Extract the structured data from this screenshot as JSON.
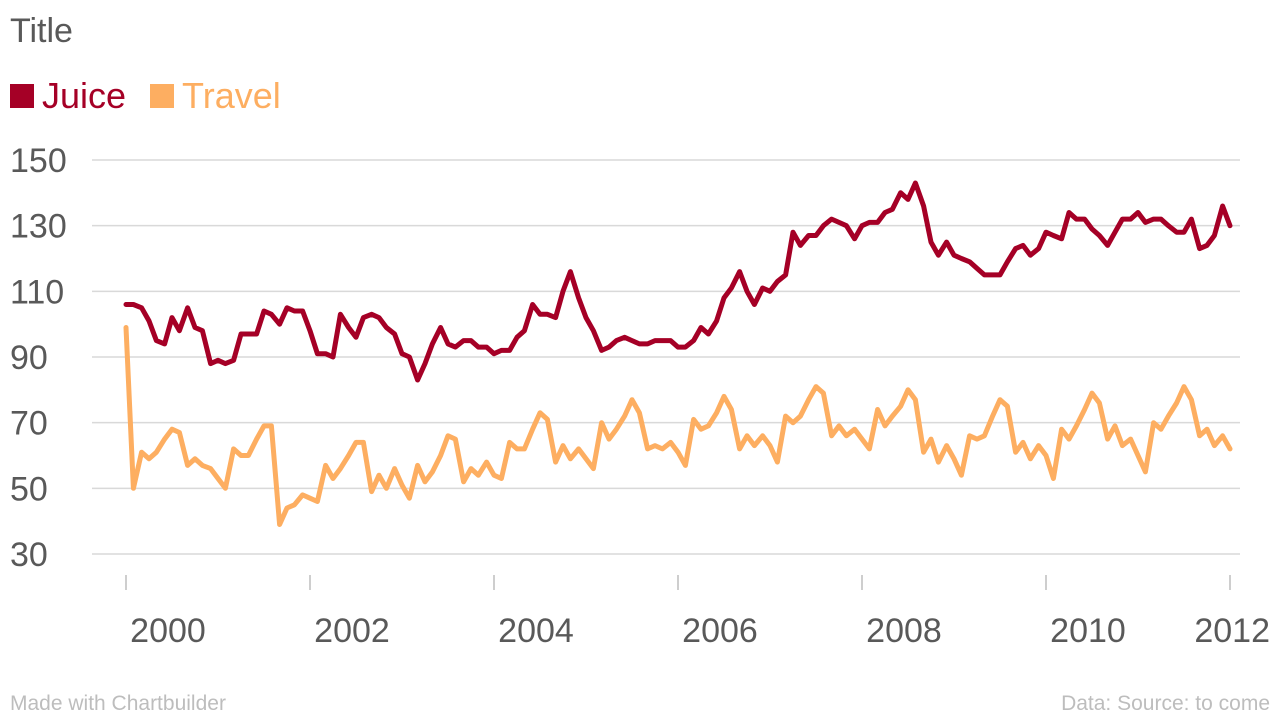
{
  "chart_data": {
    "type": "line",
    "title": "Title",
    "xlabel": "",
    "ylabel": "",
    "ylim": [
      30,
      150
    ],
    "yticks": [
      30,
      50,
      70,
      90,
      110,
      130,
      150
    ],
    "xticks": [
      2000,
      2002,
      2004,
      2006,
      2008,
      2010,
      2012
    ],
    "xlim": [
      1999.75,
      2011.75
    ],
    "grid": true,
    "legend": "top-left",
    "series": [
      {
        "name": "Juice",
        "color": "#a50026",
        "x": [
          1999.75,
          1999.83,
          1999.92,
          2000.0,
          2000.08,
          2000.17,
          2000.25,
          2000.33,
          2000.42,
          2000.5,
          2000.58,
          2000.67,
          2000.75,
          2000.83,
          2000.92,
          2001.0,
          2001.08,
          2001.17,
          2001.25,
          2001.33,
          2001.42,
          2001.5,
          2001.58,
          2001.67,
          2001.75,
          2001.83,
          2001.92,
          2002.0,
          2002.08,
          2002.17,
          2002.25,
          2002.33,
          2002.42,
          2002.5,
          2002.58,
          2002.67,
          2002.75,
          2002.83,
          2002.92,
          2003.0,
          2003.08,
          2003.17,
          2003.25,
          2003.33,
          2003.42,
          2003.5,
          2003.58,
          2003.67,
          2003.75,
          2003.83,
          2003.92,
          2004.0,
          2004.08,
          2004.17,
          2004.25,
          2004.33,
          2004.42,
          2004.5,
          2004.58,
          2004.67,
          2004.75,
          2004.83,
          2004.92,
          2005.0,
          2005.08,
          2005.17,
          2005.25,
          2005.33,
          2005.42,
          2005.5,
          2005.58,
          2005.67,
          2005.75,
          2005.83,
          2005.92,
          2006.0,
          2006.08,
          2006.17,
          2006.25,
          2006.33,
          2006.42,
          2006.5,
          2006.58,
          2006.67,
          2006.75,
          2006.83,
          2006.92,
          2007.0,
          2007.08,
          2007.17,
          2007.25,
          2007.33,
          2007.42,
          2007.5,
          2007.58,
          2007.67,
          2007.75,
          2007.83,
          2007.92,
          2008.0,
          2008.08,
          2008.17,
          2008.25,
          2008.33,
          2008.42,
          2008.5,
          2008.58,
          2008.67,
          2008.75,
          2008.83,
          2008.92,
          2009.0,
          2009.08,
          2009.17,
          2009.25,
          2009.33,
          2009.42,
          2009.5,
          2009.58,
          2009.67,
          2009.75,
          2009.83,
          2009.92,
          2010.0,
          2010.08,
          2010.17,
          2010.25,
          2010.33,
          2010.42,
          2010.5,
          2010.58,
          2010.67,
          2010.75,
          2010.83,
          2010.92,
          2011.0,
          2011.08,
          2011.17,
          2011.25,
          2011.33,
          2011.42,
          2011.5,
          2011.58,
          2011.67,
          2011.75
        ],
        "values": [
          106,
          106,
          105,
          101,
          95,
          94,
          102,
          98,
          105,
          99,
          98,
          88,
          89,
          88,
          89,
          97,
          97,
          97,
          104,
          103,
          100,
          105,
          104,
          104,
          98,
          91,
          91,
          90,
          103,
          99,
          96,
          102,
          103,
          102,
          99,
          97,
          91,
          90,
          83,
          88,
          94,
          99,
          94,
          93,
          95,
          95,
          93,
          93,
          91,
          92,
          92,
          96,
          98,
          106,
          103,
          103,
          102,
          110,
          116,
          108,
          102,
          98,
          92,
          93,
          95,
          96,
          95,
          94,
          94,
          95,
          95,
          95,
          93,
          93,
          95,
          99,
          97,
          101,
          108,
          111,
          116,
          110,
          106,
          111,
          110,
          113,
          115,
          128,
          124,
          127,
          127,
          130,
          132,
          131,
          130,
          126,
          130,
          131,
          131,
          134,
          135,
          140,
          138,
          143,
          136,
          125,
          121,
          125,
          121,
          120,
          119,
          117,
          115,
          115,
          115,
          119,
          123,
          124,
          121,
          123,
          128,
          127,
          126,
          134,
          132,
          132,
          129,
          127,
          124,
          128,
          132,
          132,
          134,
          131,
          132,
          132,
          130,
          128,
          128,
          132,
          123,
          124,
          127,
          136,
          130
        ]
      },
      {
        "name": "Travel",
        "color": "#fdae61",
        "x": [
          1999.75,
          1999.83,
          1999.92,
          2000.0,
          2000.08,
          2000.17,
          2000.25,
          2000.33,
          2000.42,
          2000.5,
          2000.58,
          2000.67,
          2000.75,
          2000.83,
          2000.92,
          2001.0,
          2001.08,
          2001.17,
          2001.25,
          2001.33,
          2001.42,
          2001.5,
          2001.58,
          2001.67,
          2001.75,
          2001.83,
          2001.92,
          2002.0,
          2002.08,
          2002.17,
          2002.25,
          2002.33,
          2002.42,
          2002.5,
          2002.58,
          2002.67,
          2002.75,
          2002.83,
          2002.92,
          2003.0,
          2003.08,
          2003.17,
          2003.25,
          2003.33,
          2003.42,
          2003.5,
          2003.58,
          2003.67,
          2003.75,
          2003.83,
          2003.92,
          2004.0,
          2004.08,
          2004.17,
          2004.25,
          2004.33,
          2004.42,
          2004.5,
          2004.58,
          2004.67,
          2004.75,
          2004.83,
          2004.92,
          2005.0,
          2005.08,
          2005.17,
          2005.25,
          2005.33,
          2005.42,
          2005.5,
          2005.58,
          2005.67,
          2005.75,
          2005.83,
          2005.92,
          2006.0,
          2006.08,
          2006.17,
          2006.25,
          2006.33,
          2006.42,
          2006.5,
          2006.58,
          2006.67,
          2006.75,
          2006.83,
          2006.92,
          2007.0,
          2007.08,
          2007.17,
          2007.25,
          2007.33,
          2007.42,
          2007.5,
          2007.58,
          2007.67,
          2007.75,
          2007.83,
          2007.92,
          2008.0,
          2008.08,
          2008.17,
          2008.25,
          2008.33,
          2008.42,
          2008.5,
          2008.58,
          2008.67,
          2008.75,
          2008.83,
          2008.92,
          2009.0,
          2009.08,
          2009.17,
          2009.25,
          2009.33,
          2009.42,
          2009.5,
          2009.58,
          2009.67,
          2009.75,
          2009.83,
          2009.92,
          2010.0,
          2010.08,
          2010.17,
          2010.25,
          2010.33,
          2010.42,
          2010.5,
          2010.58,
          2010.67,
          2010.75,
          2010.83,
          2010.92,
          2011.0,
          2011.08,
          2011.17,
          2011.25,
          2011.33,
          2011.42,
          2011.5,
          2011.58,
          2011.67,
          2011.75
        ],
        "values": [
          99,
          50,
          61,
          59,
          61,
          65,
          68,
          67,
          57,
          59,
          57,
          56,
          53,
          50,
          62,
          60,
          60,
          65,
          69,
          69,
          39,
          44,
          45,
          48,
          47,
          46,
          57,
          53,
          56,
          60,
          64,
          64,
          49,
          54,
          50,
          56,
          51,
          47,
          57,
          52,
          55,
          60,
          66,
          65,
          52,
          56,
          54,
          58,
          54,
          53,
          64,
          62,
          62,
          68,
          73,
          71,
          58,
          63,
          59,
          62,
          59,
          56,
          70,
          65,
          68,
          72,
          77,
          73,
          62,
          63,
          62,
          64,
          61,
          57,
          71,
          68,
          69,
          73,
          78,
          74,
          62,
          66,
          63,
          66,
          63,
          58,
          72,
          70,
          72,
          77,
          81,
          79,
          66,
          69,
          66,
          68,
          65,
          62,
          74,
          69,
          72,
          75,
          80,
          77,
          61,
          65,
          58,
          63,
          59,
          54,
          66,
          65,
          66,
          72,
          77,
          75,
          61,
          64,
          59,
          63,
          60,
          53,
          68,
          65,
          69,
          74,
          79,
          76,
          65,
          69,
          63,
          65,
          60,
          55,
          70,
          68,
          72,
          76,
          81,
          77,
          66,
          68,
          63,
          66,
          62
        ]
      }
    ]
  },
  "footer": {
    "left": "Made with Chartbuilder",
    "right": "Data: Source: to come"
  }
}
